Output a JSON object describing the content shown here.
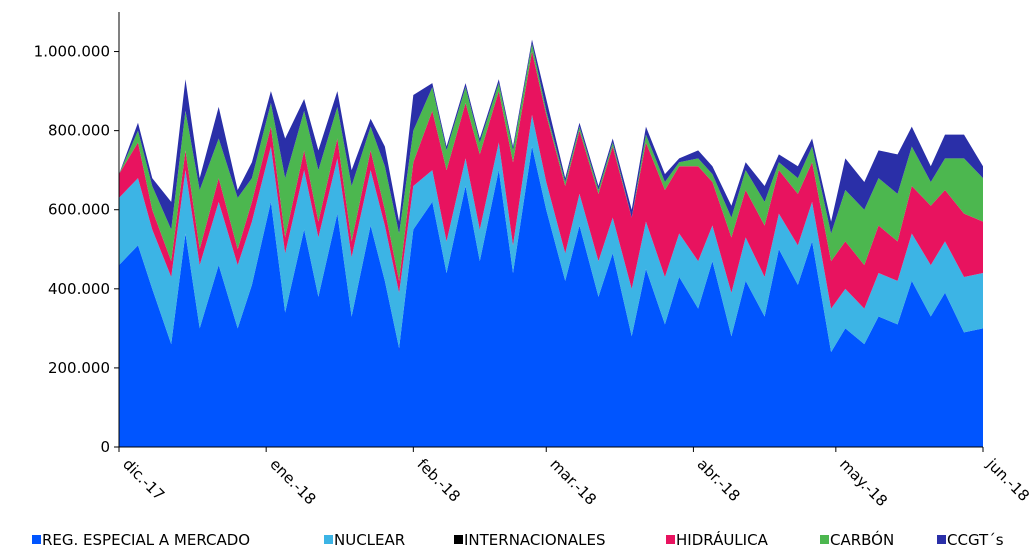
{
  "chart_data": {
    "type": "area",
    "stacked": true,
    "ylim": [
      0,
      1100000
    ],
    "yticks": [
      0,
      200000,
      400000,
      600000,
      800000,
      1000000
    ],
    "ytick_labels": [
      "0",
      "200.000",
      "400.000",
      "600.000",
      "800.000",
      "1.000.000"
    ],
    "xtick_labels": [
      "dic.-17",
      "ene.-18",
      "feb.-18",
      "mar.-18",
      "abr.-18",
      "may.-18",
      "jun.-18"
    ],
    "xtick_dates": [
      "2017-12-01",
      "2018-01-01",
      "2018-02-01",
      "2018-03-01",
      "2018-04-01",
      "2018-05-01",
      "2018-06-01"
    ],
    "x_start": "2017-12-01",
    "x_end": "2018-06-01",
    "grid": false,
    "legend_position": "bottom",
    "series": [
      {
        "name": "REG. ESPECIAL A MERCADO",
        "color": "#0055FF",
        "dates": [
          "2017-12-01",
          "2017-12-05",
          "2017-12-08",
          "2017-12-12",
          "2017-12-15",
          "2017-12-18",
          "2017-12-22",
          "2017-12-26",
          "2017-12-29",
          "2018-01-02",
          "2018-01-05",
          "2018-01-09",
          "2018-01-12",
          "2018-01-16",
          "2018-01-19",
          "2018-01-23",
          "2018-01-26",
          "2018-01-29",
          "2018-02-01",
          "2018-02-05",
          "2018-02-08",
          "2018-02-12",
          "2018-02-15",
          "2018-02-19",
          "2018-02-22",
          "2018-02-26",
          "2018-03-01",
          "2018-03-05",
          "2018-03-08",
          "2018-03-12",
          "2018-03-15",
          "2018-03-19",
          "2018-03-22",
          "2018-03-26",
          "2018-03-29",
          "2018-04-02",
          "2018-04-05",
          "2018-04-09",
          "2018-04-12",
          "2018-04-16",
          "2018-04-19",
          "2018-04-23",
          "2018-04-26",
          "2018-04-30",
          "2018-05-03",
          "2018-05-07",
          "2018-05-10",
          "2018-05-14",
          "2018-05-17",
          "2018-05-21",
          "2018-05-24",
          "2018-05-28",
          "2018-06-01"
        ],
        "values": [
          460000,
          510000,
          400000,
          260000,
          540000,
          300000,
          460000,
          300000,
          410000,
          620000,
          340000,
          550000,
          380000,
          590000,
          330000,
          560000,
          420000,
          250000,
          550000,
          620000,
          440000,
          660000,
          470000,
          700000,
          440000,
          760000,
          600000,
          420000,
          560000,
          380000,
          490000,
          280000,
          450000,
          310000,
          430000,
          350000,
          470000,
          280000,
          420000,
          330000,
          500000,
          410000,
          520000,
          240000,
          300000,
          260000,
          330000,
          310000,
          420000,
          330000,
          390000,
          290000,
          300000
        ]
      },
      {
        "name": "NUCLEAR",
        "color": "#3CB4E5",
        "dates": [
          "2017-12-01",
          "2017-12-05",
          "2017-12-08",
          "2017-12-12",
          "2017-12-15",
          "2017-12-18",
          "2017-12-22",
          "2017-12-26",
          "2017-12-29",
          "2018-01-02",
          "2018-01-05",
          "2018-01-09",
          "2018-01-12",
          "2018-01-16",
          "2018-01-19",
          "2018-01-23",
          "2018-01-26",
          "2018-01-29",
          "2018-02-01",
          "2018-02-05",
          "2018-02-08",
          "2018-02-12",
          "2018-02-15",
          "2018-02-19",
          "2018-02-22",
          "2018-02-26",
          "2018-03-01",
          "2018-03-05",
          "2018-03-08",
          "2018-03-12",
          "2018-03-15",
          "2018-03-19",
          "2018-03-22",
          "2018-03-26",
          "2018-03-29",
          "2018-04-02",
          "2018-04-05",
          "2018-04-09",
          "2018-04-12",
          "2018-04-16",
          "2018-04-19",
          "2018-04-23",
          "2018-04-26",
          "2018-04-30",
          "2018-05-03",
          "2018-05-07",
          "2018-05-10",
          "2018-05-14",
          "2018-05-17",
          "2018-05-21",
          "2018-05-24",
          "2018-05-28",
          "2018-06-01"
        ],
        "values": [
          170000,
          170000,
          150000,
          170000,
          160000,
          160000,
          160000,
          160000,
          160000,
          140000,
          150000,
          150000,
          150000,
          140000,
          150000,
          140000,
          140000,
          140000,
          110000,
          80000,
          80000,
          70000,
          80000,
          70000,
          70000,
          80000,
          70000,
          70000,
          80000,
          90000,
          90000,
          120000,
          120000,
          120000,
          110000,
          120000,
          90000,
          110000,
          110000,
          100000,
          90000,
          100000,
          100000,
          110000,
          100000,
          90000,
          110000,
          110000,
          120000,
          130000,
          130000,
          140000,
          140000
        ]
      },
      {
        "name": "INTERNACIONALES",
        "color": "#000000",
        "dates": [
          "2017-12-01",
          "2018-06-01"
        ],
        "values": [
          0,
          0
        ]
      },
      {
        "name": "HIDRÁULICA",
        "color": "#E8135F",
        "dates": [
          "2017-12-01",
          "2017-12-05",
          "2017-12-08",
          "2017-12-12",
          "2017-12-15",
          "2017-12-18",
          "2017-12-22",
          "2017-12-26",
          "2017-12-29",
          "2018-01-02",
          "2018-01-05",
          "2018-01-09",
          "2018-01-12",
          "2018-01-16",
          "2018-01-19",
          "2018-01-23",
          "2018-01-26",
          "2018-01-29",
          "2018-02-01",
          "2018-02-05",
          "2018-02-08",
          "2018-02-12",
          "2018-02-15",
          "2018-02-19",
          "2018-02-22",
          "2018-02-26",
          "2018-03-01",
          "2018-03-05",
          "2018-03-08",
          "2018-03-12",
          "2018-03-15",
          "2018-03-19",
          "2018-03-22",
          "2018-03-26",
          "2018-03-29",
          "2018-04-02",
          "2018-04-05",
          "2018-04-09",
          "2018-04-12",
          "2018-04-16",
          "2018-04-19",
          "2018-04-23",
          "2018-04-26",
          "2018-04-30",
          "2018-05-03",
          "2018-05-07",
          "2018-05-10",
          "2018-05-14",
          "2018-05-17",
          "2018-05-21",
          "2018-05-24",
          "2018-05-28",
          "2018-06-01"
        ],
        "values": [
          60000,
          90000,
          50000,
          40000,
          50000,
          40000,
          60000,
          40000,
          50000,
          50000,
          40000,
          50000,
          40000,
          50000,
          40000,
          50000,
          40000,
          30000,
          60000,
          150000,
          180000,
          140000,
          190000,
          130000,
          210000,
          160000,
          170000,
          170000,
          160000,
          170000,
          180000,
          180000,
          200000,
          220000,
          170000,
          240000,
          110000,
          140000,
          120000,
          130000,
          110000,
          130000,
          100000,
          120000,
          120000,
          110000,
          120000,
          100000,
          120000,
          150000,
          130000,
          160000,
          130000
        ]
      },
      {
        "name": "CARBÓN",
        "color": "#4CB74F",
        "dates": [
          "2017-12-01",
          "2017-12-05",
          "2017-12-08",
          "2017-12-12",
          "2017-12-15",
          "2017-12-18",
          "2017-12-22",
          "2017-12-26",
          "2017-12-29",
          "2018-01-02",
          "2018-01-05",
          "2018-01-09",
          "2018-01-12",
          "2018-01-16",
          "2018-01-19",
          "2018-01-23",
          "2018-01-26",
          "2018-01-29",
          "2018-02-01",
          "2018-02-05",
          "2018-02-08",
          "2018-02-12",
          "2018-02-15",
          "2018-02-19",
          "2018-02-22",
          "2018-02-26",
          "2018-03-01",
          "2018-03-05",
          "2018-03-08",
          "2018-03-12",
          "2018-03-15",
          "2018-03-19",
          "2018-03-22",
          "2018-03-26",
          "2018-03-29",
          "2018-04-02",
          "2018-04-05",
          "2018-04-09",
          "2018-04-12",
          "2018-04-16",
          "2018-04-19",
          "2018-04-23",
          "2018-04-26",
          "2018-04-30",
          "2018-05-03",
          "2018-05-07",
          "2018-05-10",
          "2018-05-14",
          "2018-05-17",
          "2018-05-21",
          "2018-05-24",
          "2018-05-28",
          "2018-06-01"
        ],
        "values": [
          0,
          30000,
          60000,
          80000,
          100000,
          150000,
          100000,
          130000,
          60000,
          60000,
          150000,
          100000,
          130000,
          80000,
          140000,
          60000,
          110000,
          120000,
          80000,
          60000,
          50000,
          40000,
          30000,
          20000,
          30000,
          20000,
          10000,
          10000,
          10000,
          10000,
          10000,
          0,
          20000,
          20000,
          10000,
          20000,
          20000,
          50000,
          50000,
          60000,
          20000,
          40000,
          40000,
          70000,
          130000,
          140000,
          120000,
          120000,
          100000,
          60000,
          80000,
          140000,
          110000
        ]
      },
      {
        "name": "CCGT´s",
        "color": "#2A2FA8",
        "dates": [
          "2017-12-01",
          "2017-12-05",
          "2017-12-08",
          "2017-12-12",
          "2017-12-15",
          "2017-12-18",
          "2017-12-22",
          "2017-12-26",
          "2017-12-29",
          "2018-01-02",
          "2018-01-05",
          "2018-01-09",
          "2018-01-12",
          "2018-01-16",
          "2018-01-19",
          "2018-01-23",
          "2018-01-26",
          "2018-01-29",
          "2018-02-01",
          "2018-02-05",
          "2018-02-08",
          "2018-02-12",
          "2018-02-15",
          "2018-02-19",
          "2018-02-22",
          "2018-02-26",
          "2018-03-01",
          "2018-03-05",
          "2018-03-08",
          "2018-03-12",
          "2018-03-15",
          "2018-03-19",
          "2018-03-22",
          "2018-03-26",
          "2018-03-29",
          "2018-04-02",
          "2018-04-05",
          "2018-04-09",
          "2018-04-12",
          "2018-04-16",
          "2018-04-19",
          "2018-04-23",
          "2018-04-26",
          "2018-04-30",
          "2018-05-03",
          "2018-05-07",
          "2018-05-10",
          "2018-05-14",
          "2018-05-17",
          "2018-05-21",
          "2018-05-24",
          "2018-05-28",
          "2018-06-01"
        ],
        "values": [
          0,
          20000,
          20000,
          70000,
          80000,
          30000,
          80000,
          20000,
          40000,
          30000,
          100000,
          30000,
          50000,
          40000,
          40000,
          20000,
          50000,
          30000,
          90000,
          10000,
          10000,
          10000,
          10000,
          10000,
          10000,
          10000,
          30000,
          10000,
          10000,
          10000,
          10000,
          20000,
          20000,
          20000,
          10000,
          20000,
          20000,
          30000,
          20000,
          40000,
          20000,
          30000,
          20000,
          30000,
          80000,
          70000,
          70000,
          100000,
          50000,
          40000,
          60000,
          60000,
          30000
        ]
      }
    ]
  }
}
